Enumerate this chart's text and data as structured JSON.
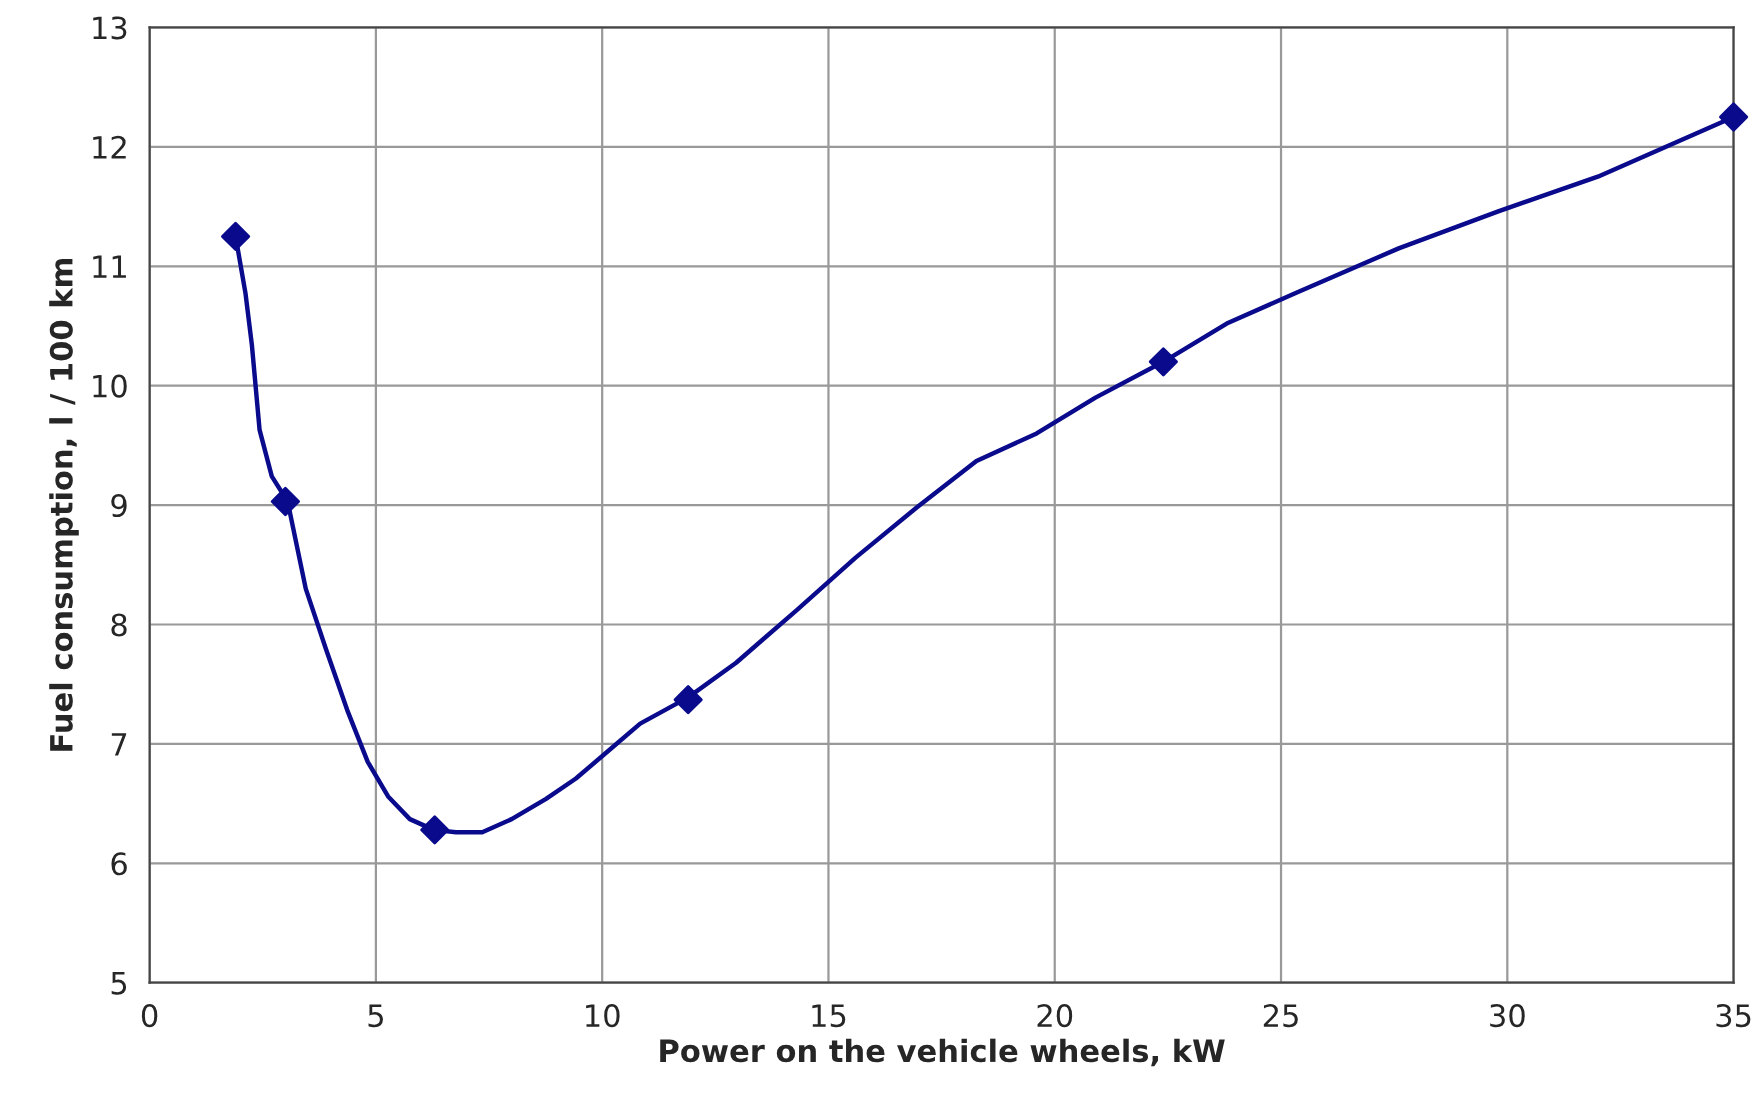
{
  "chart_data": {
    "type": "line",
    "xlabel": "Power on the vehicle wheels, kW",
    "ylabel": "Fuel consumption, l / 100 km",
    "xlim": [
      0,
      35
    ],
    "ylim": [
      5,
      13
    ],
    "xticks": [
      0,
      5,
      10,
      15,
      20,
      25,
      30,
      35
    ],
    "yticks": [
      5,
      6,
      7,
      8,
      9,
      10,
      11,
      12,
      13
    ],
    "grid": true,
    "legend": false,
    "series": [
      {
        "color": "#0a0a8c",
        "marker": "none",
        "line_style": "solid",
        "x": [
          1.9,
          2.12,
          2.26,
          2.43,
          2.7,
          3.05,
          3.45,
          3.9,
          4.38,
          4.82,
          5.27,
          5.75,
          6.28,
          6.77,
          7.35,
          8.0,
          8.76,
          9.42,
          10.1,
          10.84,
          11.9,
          12.96,
          14.3,
          15.6,
          16.95,
          18.27,
          19.6,
          20.9,
          22.4,
          23.8,
          25.35,
          27.6,
          29.8,
          32,
          35
        ],
        "values": [
          11.25,
          10.77,
          10.34,
          9.63,
          9.24,
          9.03,
          8.3,
          7.79,
          7.27,
          6.85,
          6.56,
          6.37,
          6.28,
          6.26,
          6.26,
          6.37,
          6.54,
          6.71,
          6.93,
          7.17,
          7.39,
          7.68,
          8.12,
          8.56,
          8.98,
          9.37,
          9.6,
          9.9,
          10.2,
          10.52,
          10.78,
          11.15,
          11.46,
          11.75,
          12.25
        ]
      },
      {
        "type": "scatter",
        "color": "#0a0a8c",
        "marker": "diamond",
        "x": [
          1.9,
          3.0,
          6.3,
          11.9,
          22.4,
          35
        ],
        "values": [
          11.25,
          9.03,
          6.28,
          7.37,
          10.2,
          12.25
        ]
      }
    ]
  }
}
